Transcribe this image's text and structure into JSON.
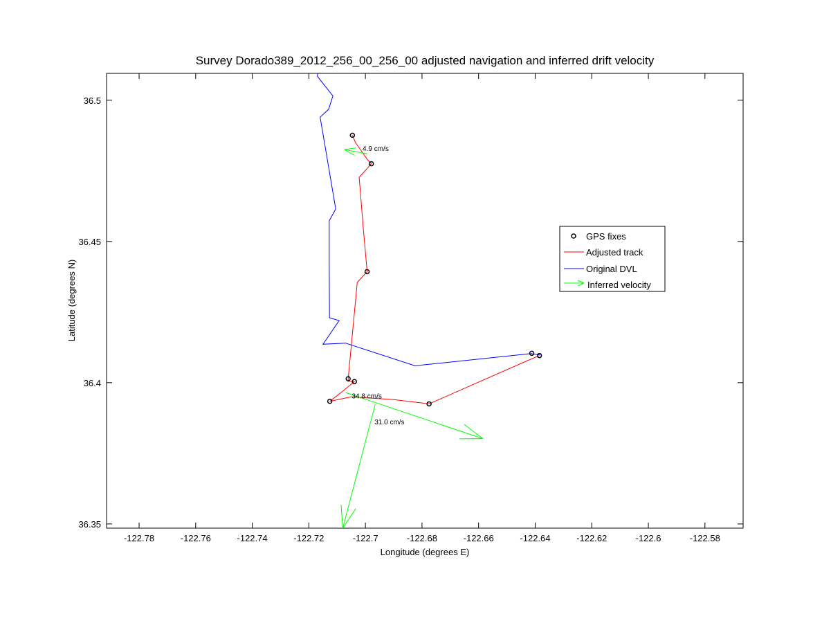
{
  "chart_data": {
    "type": "line",
    "title": "Survey Dorado389_2012_256_00_256_00 adjusted navigation and inferred drift velocity",
    "xlabel": "Longitude (degrees E)",
    "ylabel": "Latitude (degrees N)",
    "xlim": [
      -122.7915,
      -122.5665
    ],
    "ylim": [
      36.3485,
      36.5095
    ],
    "xticks": [
      "-122.78",
      "-122.76",
      "-122.74",
      "-122.72",
      "-122.7",
      "-122.68",
      "-122.66",
      "-122.64",
      "-122.62",
      "-122.6",
      "-122.58"
    ],
    "yticks": [
      "36.35",
      "36.4",
      "36.45",
      "36.5"
    ],
    "grid": false,
    "legend_position": "upper-right",
    "legend": {
      "gps": "GPS fixes",
      "adjusted": "Adjusted track",
      "original": "Original DVL",
      "velocity": "Inferred velocity"
    },
    "colors": {
      "gps": "#000000",
      "adjusted": "#ff0000",
      "original": "#0000ff",
      "velocity": "#00ff00"
    },
    "gps_fixes": [
      [
        -122.7046,
        36.4876
      ],
      [
        -122.6979,
        36.4775
      ],
      [
        -122.6994,
        36.4393
      ],
      [
        -122.7061,
        36.4014
      ],
      [
        -122.7039,
        36.4004
      ],
      [
        -122.7126,
        36.3934
      ],
      [
        -122.6775,
        36.3925
      ],
      [
        -122.6385,
        36.4096
      ],
      [
        -122.6412,
        36.4104
      ]
    ],
    "adjusted_track": [
      [
        -122.7046,
        36.4876
      ],
      [
        -122.7035,
        36.485
      ],
      [
        -122.6993,
        36.479
      ],
      [
        -122.6979,
        36.4775
      ],
      [
        -122.7022,
        36.4727
      ],
      [
        -122.7008,
        36.455
      ],
      [
        -122.6994,
        36.4393
      ],
      [
        -122.7029,
        36.4355
      ],
      [
        -122.7061,
        36.4014
      ],
      [
        -122.7061,
        36.4005
      ],
      [
        -122.7039,
        36.4004
      ],
      [
        -122.708,
        36.397
      ],
      [
        -122.7126,
        36.3934
      ],
      [
        -122.705,
        36.395
      ],
      [
        -122.69,
        36.394
      ],
      [
        -122.6775,
        36.3925
      ],
      [
        -122.64,
        36.409
      ],
      [
        -122.6385,
        36.4096
      ]
    ],
    "original_dvl": [
      [
        -122.7165,
        36.5115
      ],
      [
        -122.717,
        36.5085
      ],
      [
        -122.7115,
        36.5015
      ],
      [
        -122.713,
        36.4968
      ],
      [
        -122.716,
        36.494
      ],
      [
        -122.7105,
        36.4615
      ],
      [
        -122.7128,
        36.4573
      ],
      [
        -122.7128,
        36.442
      ],
      [
        -122.7127,
        36.423
      ],
      [
        -122.7093,
        36.422
      ],
      [
        -122.715,
        36.4136
      ],
      [
        -122.707,
        36.414
      ],
      [
        -122.6825,
        36.406
      ],
      [
        -122.6415,
        36.4103
      ],
      [
        -122.6382,
        36.4098
      ]
    ],
    "inferred_velocity": [
      {
        "label": "4.9 cm/s",
        "from": [
          -122.6993,
          36.481
        ],
        "to": [
          -122.7074,
          36.4825
        ],
        "label_at": [
          -122.701,
          36.4821
        ]
      },
      {
        "label": "34.8 cm/s",
        "from": [
          -122.707,
          36.3965
        ],
        "to": [
          -122.6585,
          36.3802
        ],
        "label_at": [
          -122.7048,
          36.3945
        ]
      },
      {
        "label": "31.0 cm/s",
        "from": [
          -122.6965,
          36.3925
        ],
        "to": [
          -122.708,
          36.3485
        ],
        "label_at": [
          -122.6968,
          36.3852
        ]
      }
    ]
  }
}
